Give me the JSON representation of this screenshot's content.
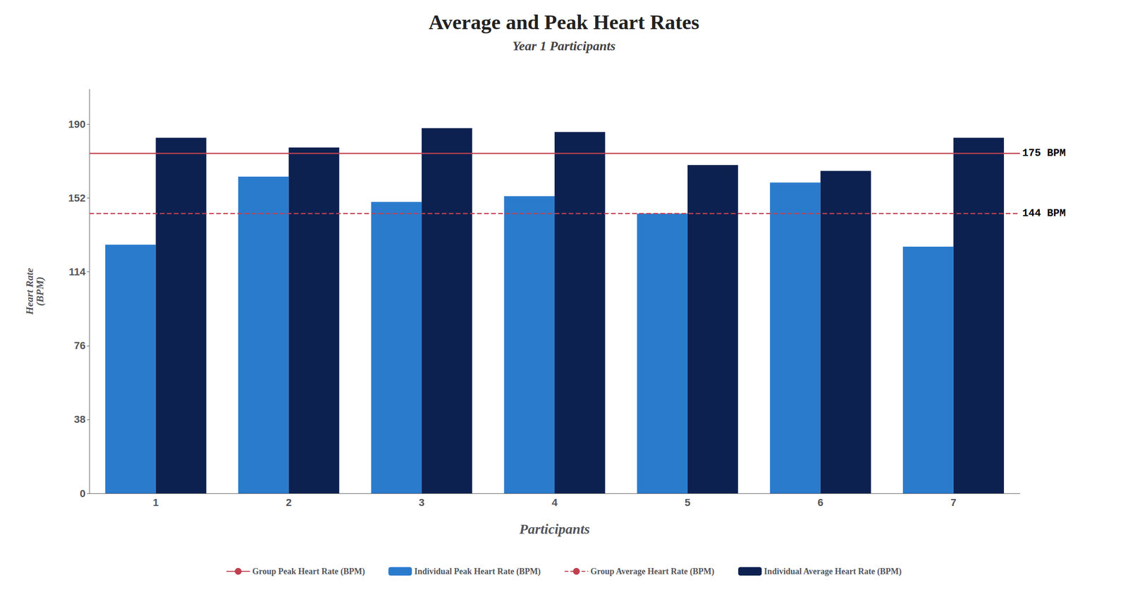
{
  "chart_data": {
    "type": "bar",
    "title": "Average and Peak Heart Rates",
    "subtitle": "Year 1 Participants",
    "xlabel": "Participants",
    "ylabel": "Heart Rate\n(BPM)",
    "categories": [
      "1",
      "2",
      "3",
      "4",
      "5",
      "6",
      "7"
    ],
    "series": [
      {
        "name": "Individual Peak Heart Rate (BPM)",
        "color": "#2B7BCD",
        "values": [
          128,
          163,
          150,
          153,
          144,
          160,
          127
        ]
      },
      {
        "name": "Individual Average Heart Rate (BPM)",
        "color": "#0D2150",
        "values": [
          183,
          178,
          188,
          186,
          169,
          166,
          183
        ]
      }
    ],
    "reference_lines": [
      {
        "name": "Group Peak Heart Rate (BPM)",
        "value": 175,
        "label": "175 BPM",
        "color": "#C04050",
        "line_style": "solid"
      },
      {
        "name": "Group Average Heart Rate (BPM)",
        "value": 144,
        "label": "144 BPM",
        "color": "#C04050",
        "line_style": "dashed"
      }
    ],
    "ylim": [
      0,
      208
    ],
    "yticks": [
      0,
      38,
      76,
      114,
      152,
      190
    ],
    "grid": false,
    "legend": "bottom"
  }
}
